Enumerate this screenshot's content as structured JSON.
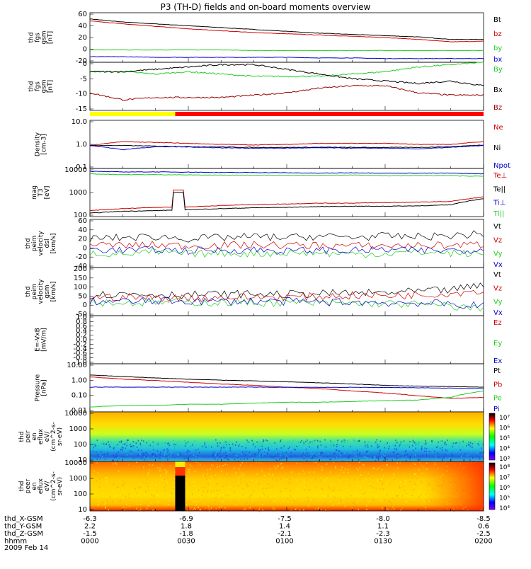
{
  "title": "P3 (TH-D) fields and on-board moments overview",
  "date": "2009 Feb 14",
  "ephemeris": {
    "rows": [
      {
        "label": "thd_X-GSM",
        "values": [
          "-6.3",
          "-6.9",
          "-7.5",
          "-8.0",
          "-8.5"
        ]
      },
      {
        "label": "thd_Y-GSM",
        "values": [
          "2.2",
          "1.8",
          "1.4",
          "1.1",
          "0.6"
        ]
      },
      {
        "label": "thd_Z-GSM",
        "values": [
          "-1.5",
          "-1.8",
          "-2.1",
          "-2.3",
          "-2.5"
        ]
      },
      {
        "label": "hhmm",
        "values": [
          "0000",
          "0030",
          "0100",
          "0130",
          "0200"
        ]
      }
    ]
  },
  "mode_bar": {
    "colors": [
      "#ffff00",
      "#ff0000"
    ],
    "switch_time_min": 26
  },
  "colors": {
    "black": "#000000",
    "red": "#cc0000",
    "green": "#22cc22",
    "blue": "#0000cc",
    "darkred": "#990000"
  },
  "chart_data": [
    {
      "id": "fgs-gsm",
      "type": "line",
      "ylabel": [
        "thd",
        "fgs",
        "gsm",
        "[nT]"
      ],
      "ylim": [
        -20,
        60
      ],
      "yticks": [
        "60",
        "40",
        "20",
        "0",
        "-20"
      ],
      "x": [
        0,
        10,
        20,
        30,
        40,
        50,
        60,
        70,
        80,
        90,
        100,
        110,
        120
      ],
      "series": [
        {
          "name": "Bt",
          "color": "#000000",
          "values": [
            50,
            45,
            42,
            39,
            36,
            33,
            30,
            27,
            25,
            23,
            21,
            17,
            17
          ]
        },
        {
          "name": "bz",
          "color": "#cc0000",
          "values": [
            47,
            42,
            38,
            34,
            31,
            28,
            26,
            24,
            22,
            20,
            17,
            13,
            14
          ]
        },
        {
          "name": "by",
          "color": "#22cc22",
          "values": [
            0,
            0,
            0,
            0,
            0,
            -1,
            -1,
            -1,
            -1,
            -1,
            -1,
            -1,
            -1
          ]
        },
        {
          "name": "bx",
          "color": "#0000cc",
          "values": [
            -11,
            -11,
            -12,
            -12,
            -12,
            -12,
            -12,
            -13,
            -13,
            -14,
            -14,
            -14,
            -14
          ]
        }
      ]
    },
    {
      "id": "fgs-gsm-zoom",
      "type": "line",
      "ylabel": [
        "thd",
        "fgs",
        "gsm",
        "[nT]"
      ],
      "ylim": [
        -17.5,
        3
      ],
      "yticks": [
        "0",
        "-5",
        "-10",
        "-15"
      ],
      "x": [
        0,
        10,
        20,
        30,
        40,
        50,
        60,
        70,
        80,
        90,
        100,
        110,
        120
      ],
      "series": [
        {
          "name": "By",
          "color": "#22cc22",
          "values": [
            -1,
            -1,
            -2,
            -1,
            -2,
            -3,
            -3,
            -3,
            -2,
            -1,
            1,
            2,
            3
          ]
        },
        {
          "name": "Bx",
          "color": "#000000",
          "values": [
            -1,
            -1,
            0,
            1,
            2,
            2,
            0,
            -2,
            -4,
            -5,
            -6,
            -5,
            -7
          ]
        },
        {
          "name": "Bz",
          "color": "#990000",
          "values": [
            -10,
            -13,
            -12,
            -12,
            -12,
            -11,
            -10,
            -8,
            -7,
            -7,
            -10,
            -11,
            -11
          ]
        }
      ]
    },
    {
      "id": "density",
      "type": "line",
      "scale": "log",
      "ylabel": [
        "Density",
        "[cm-3]"
      ],
      "ylim": [
        0.1,
        10
      ],
      "yticks": [
        "10.0",
        "1.0",
        "0.1"
      ],
      "x": [
        0,
        10,
        20,
        30,
        40,
        50,
        60,
        70,
        80,
        90,
        100,
        110,
        120
      ],
      "series": [
        {
          "name": "Ne",
          "color": "#cc0000",
          "values": [
            0.9,
            1.3,
            1.2,
            1.1,
            1.0,
            0.95,
            1.0,
            1.1,
            1.1,
            1.1,
            1.0,
            1.0,
            1.3
          ]
        },
        {
          "name": "Ni",
          "color": "#000000",
          "values": [
            0.9,
            0.9,
            0.85,
            0.8,
            0.78,
            0.75,
            0.75,
            0.76,
            0.75,
            0.75,
            0.75,
            0.8,
            0.95
          ]
        },
        {
          "name": "Npot",
          "color": "#0000cc",
          "values": [
            0.9,
            0.6,
            0.8,
            0.78,
            0.72,
            0.7,
            0.7,
            0.72,
            0.7,
            0.7,
            0.65,
            0.75,
            0.9
          ]
        }
      ]
    },
    {
      "id": "temperature",
      "type": "line",
      "scale": "log",
      "ylabel": [
        "mag",
        "T3",
        "[eV]"
      ],
      "ylim": [
        100,
        12000
      ],
      "yticks": [
        "10000",
        "1000",
        "100"
      ],
      "x": [
        0,
        10,
        20,
        30,
        40,
        50,
        60,
        70,
        80,
        90,
        100,
        110,
        120
      ],
      "series": [
        {
          "name": "Te⊥",
          "color": "#cc0000",
          "values": [
            180,
            220,
            250,
            260,
            300,
            330,
            350,
            380,
            380,
            400,
            420,
            450,
            700
          ]
        },
        {
          "name": "Te||",
          "color": "#000000",
          "values": [
            140,
            170,
            180,
            200,
            220,
            240,
            250,
            270,
            280,
            280,
            290,
            320,
            600
          ]
        },
        {
          "name": "Ti⊥",
          "color": "#0000cc",
          "values": [
            9000,
            8500,
            8500,
            8300,
            8000,
            8000,
            7800,
            7500,
            7800,
            7500,
            7500,
            7500,
            7000
          ]
        },
        {
          "name": "Ti||",
          "color": "#22cc22",
          "values": [
            7000,
            6500,
            6500,
            6300,
            6200,
            6200,
            6000,
            6000,
            6200,
            5800,
            5800,
            5800,
            5500
          ]
        }
      ]
    },
    {
      "id": "peim-velocity-dsl",
      "type": "line",
      "ylabel": [
        "thd",
        "peim",
        "velocity",
        "dsl",
        "[km/s]"
      ],
      "ylim": [
        -40,
        60
      ],
      "yticks": [
        "60",
        "40",
        "20",
        "0",
        "-20",
        "-40"
      ],
      "x": [
        0,
        10,
        20,
        30,
        40,
        50,
        60,
        70,
        80,
        90,
        100,
        110,
        120
      ],
      "series": [
        {
          "name": "Vt",
          "color": "#000000",
          "values": [
            20,
            22,
            24,
            20,
            22,
            24,
            22,
            25,
            23,
            25,
            24,
            26,
            30
          ]
        },
        {
          "name": "Vz",
          "color": "#cc0000",
          "values": [
            8,
            6,
            7,
            5,
            6,
            7,
            6,
            6,
            5,
            5,
            6,
            6,
            8
          ]
        },
        {
          "name": "Vy",
          "color": "#22cc22",
          "values": [
            -10,
            -12,
            -8,
            -12,
            -10,
            -11,
            -9,
            -10,
            -12,
            -11,
            -8,
            -10,
            -12
          ]
        },
        {
          "name": "Vx",
          "color": "#0000cc",
          "values": [
            -2,
            -4,
            -3,
            -5,
            -4,
            -3,
            -6,
            -4,
            -5,
            -3,
            -5,
            -4,
            -3
          ]
        }
      ]
    },
    {
      "id": "peim-velocity-gsm",
      "type": "line",
      "ylabel": [
        "thd",
        "peim",
        "velocity",
        "gsm",
        "[km/s]"
      ],
      "ylim": [
        -100,
        200
      ],
      "yticks": [
        "200",
        "150",
        "100",
        "50",
        "0",
        "-50"
      ],
      "x": [
        0,
        10,
        20,
        30,
        40,
        50,
        60,
        70,
        80,
        90,
        100,
        110,
        120
      ],
      "series": [
        {
          "name": "Vt",
          "color": "#000000",
          "values": [
            30,
            35,
            32,
            30,
            33,
            35,
            33,
            37,
            40,
            42,
            50,
            60,
            90
          ]
        },
        {
          "name": "Vz",
          "color": "#cc0000",
          "values": [
            15,
            15,
            12,
            10,
            14,
            16,
            15,
            20,
            25,
            25,
            30,
            40,
            60
          ]
        },
        {
          "name": "Vy",
          "color": "#22cc22",
          "values": [
            -15,
            -20,
            -18,
            -15,
            -20,
            -18,
            -20,
            -22,
            -25,
            -25,
            -30,
            -40,
            -60
          ]
        },
        {
          "name": "Vx",
          "color": "#0000cc",
          "values": [
            -10,
            -12,
            -10,
            -8,
            -12,
            -10,
            -12,
            -15,
            -15,
            -20,
            -20,
            -30,
            -40
          ]
        }
      ]
    },
    {
      "id": "efield",
      "type": "line",
      "ylabel": [
        "E=-VxB",
        "[mV/m]"
      ],
      "ylim": [
        -1,
        1
      ],
      "yticks": [
        "1.0",
        "0.8",
        "0.6",
        "0.4",
        "0.2",
        "0.0",
        "-0.2",
        "-0.4",
        "-0.6",
        "-0.8",
        "-1.0"
      ],
      "series": [
        {
          "name": "Ez",
          "color": "#cc0000",
          "values": []
        },
        {
          "name": "Ey",
          "color": "#22cc22",
          "values": []
        },
        {
          "name": "Ex",
          "color": "#0000cc",
          "values": []
        }
      ]
    },
    {
      "id": "pressure",
      "type": "line",
      "scale": "log",
      "ylabel": [
        "Pressure",
        "[nPa]"
      ],
      "ylim": [
        0.01,
        10
      ],
      "yticks": [
        "10.00",
        "1.00",
        "0.10",
        "0.01"
      ],
      "x": [
        0,
        10,
        20,
        30,
        40,
        50,
        60,
        70,
        80,
        90,
        100,
        110,
        120
      ],
      "series": [
        {
          "name": "Pt",
          "color": "#000000",
          "values": [
            2.0,
            1.6,
            1.3,
            1.1,
            0.95,
            0.85,
            0.75,
            0.65,
            0.55,
            0.45,
            0.4,
            0.38,
            0.35
          ]
        },
        {
          "name": "Pb",
          "color": "#cc0000",
          "values": [
            1.5,
            1.1,
            0.9,
            0.7,
            0.55,
            0.45,
            0.35,
            0.28,
            0.2,
            0.15,
            0.1,
            0.07,
            0.08
          ]
        },
        {
          "name": "Pe",
          "color": "#22cc22",
          "values": [
            0.02,
            0.025,
            0.025,
            0.03,
            0.03,
            0.035,
            0.04,
            0.04,
            0.045,
            0.05,
            0.055,
            0.08,
            0.2
          ]
        },
        {
          "name": "Pi",
          "color": "#0000cc",
          "values": [
            0.35,
            0.35,
            0.35,
            0.35,
            0.35,
            0.35,
            0.34,
            0.34,
            0.34,
            0.33,
            0.32,
            0.3,
            0.28
          ]
        }
      ]
    },
    {
      "id": "peir-spectrogram",
      "type": "heatmap",
      "ylabel": [
        "thd",
        "peir",
        "en",
        "eflux",
        "eV/",
        "(cm^2-s-",
        "sr-eV)"
      ],
      "yticks": [
        "10000",
        "1000",
        "100",
        "10"
      ],
      "colorbar": [
        "10⁷",
        "10⁶",
        "10⁵",
        "10⁴",
        "10³"
      ]
    },
    {
      "id": "peer-spectrogram",
      "type": "heatmap",
      "ylabel": [
        "thd",
        "peer",
        "en",
        "eflux",
        "eV/",
        "(cm^2-s-",
        "sr-eV)"
      ],
      "yticks": [
        "10000",
        "1000",
        "100",
        "10"
      ],
      "colorbar": [
        "10⁸",
        "10⁷",
        "10⁶",
        "10⁵",
        "10⁴"
      ]
    }
  ]
}
